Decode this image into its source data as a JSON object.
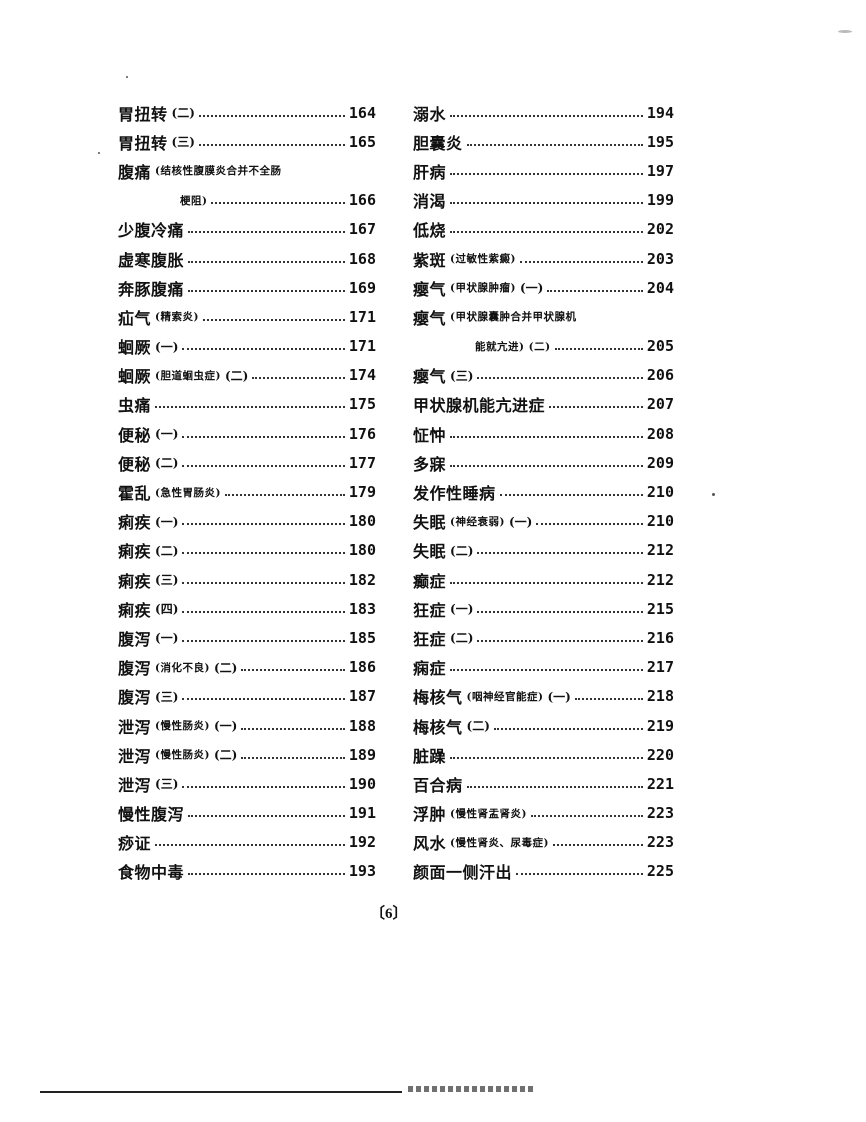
{
  "toc": {
    "left": [
      {
        "title": "胃扭转",
        "note": "",
        "suffix": "(二)",
        "page": "164"
      },
      {
        "title": "胃扭转",
        "note": "",
        "suffix": "(三)",
        "page": "165"
      },
      {
        "title": "腹痛",
        "note": "(结核性腹膜炎合并不全肠",
        "continuation": "梗阻)",
        "page": "166"
      },
      {
        "title": "少腹冷痛",
        "note": "",
        "suffix": "",
        "page": "167"
      },
      {
        "title": "虚寒腹胀",
        "note": "",
        "suffix": "",
        "page": "168"
      },
      {
        "title": "奔豚腹痛",
        "note": "",
        "suffix": "",
        "page": "169"
      },
      {
        "title": "疝气",
        "note": "(精索炎)",
        "suffix": "",
        "page": "171"
      },
      {
        "title": "蛔厥",
        "note": "",
        "suffix": "(一)",
        "page": "171"
      },
      {
        "title": "蛔厥",
        "note": "(胆道蛔虫症)",
        "suffix": "(二)",
        "page": "174"
      },
      {
        "title": "虫痛",
        "note": "",
        "suffix": "",
        "page": "175"
      },
      {
        "title": "便秘",
        "note": "",
        "suffix": "(一)",
        "page": "176"
      },
      {
        "title": "便秘",
        "note": "",
        "suffix": "(二)",
        "page": "177"
      },
      {
        "title": "霍乱",
        "note": "(急性胃肠炎)",
        "suffix": "",
        "page": "179"
      },
      {
        "title": "痢疾",
        "note": "",
        "suffix": "(一)",
        "page": "180"
      },
      {
        "title": "痢疾",
        "note": "",
        "suffix": "(二)",
        "page": "180"
      },
      {
        "title": "痢疾",
        "note": "",
        "suffix": "(三)",
        "page": "182"
      },
      {
        "title": "痢疾",
        "note": "",
        "suffix": "(四)",
        "page": "183"
      },
      {
        "title": "腹泻",
        "note": "",
        "suffix": "(一)",
        "page": "185"
      },
      {
        "title": "腹泻",
        "note": "(消化不良)",
        "suffix": "(二)",
        "page": "186"
      },
      {
        "title": "腹泻",
        "note": "",
        "suffix": "(三)",
        "page": "187"
      },
      {
        "title": "泄泻",
        "note": "(慢性肠炎)",
        "suffix": "(一)",
        "page": "188"
      },
      {
        "title": "泄泻",
        "note": "(慢性肠炎)",
        "suffix": "(二)",
        "page": "189"
      },
      {
        "title": "泄泻",
        "note": "",
        "suffix": "(三)",
        "page": "190"
      },
      {
        "title": "慢性腹泻",
        "note": "",
        "suffix": "",
        "page": "191"
      },
      {
        "title": "痧证",
        "note": "",
        "suffix": "",
        "page": "192"
      },
      {
        "title": "食物中毒",
        "note": "",
        "suffix": "",
        "page": "193"
      }
    ],
    "right": [
      {
        "title": "溺水",
        "note": "",
        "suffix": "",
        "page": "194"
      },
      {
        "title": "胆囊炎",
        "note": "",
        "suffix": "",
        "page": "195"
      },
      {
        "title": "肝病",
        "note": "",
        "suffix": "",
        "page": "197"
      },
      {
        "title": "消渴",
        "note": "",
        "suffix": "",
        "page": "199"
      },
      {
        "title": "低烧",
        "note": "",
        "suffix": "",
        "page": "202"
      },
      {
        "title": "紫斑",
        "note": "(过敏性紫癜)",
        "suffix": "",
        "page": "203"
      },
      {
        "title": "瘿气",
        "note": "(甲状腺肿瘤)",
        "suffix": "(一)",
        "page": "204"
      },
      {
        "title": "瘿气",
        "note": "(甲状腺囊肿合并甲状腺机",
        "continuation": "能就亢进) (二)",
        "page": "205"
      },
      {
        "title": "瘿气",
        "note": "",
        "suffix": "(三)",
        "page": "206"
      },
      {
        "title": "甲状腺机能亢进症",
        "note": "",
        "suffix": "",
        "page": "207"
      },
      {
        "title": "怔忡",
        "note": "",
        "suffix": "",
        "page": "208"
      },
      {
        "title": "多寐",
        "note": "",
        "suffix": "",
        "page": "209"
      },
      {
        "title": "发作性睡病",
        "note": "",
        "suffix": "",
        "page": "210"
      },
      {
        "title": "失眠",
        "note": "(神经衰弱)",
        "suffix": "(一)",
        "page": "210"
      },
      {
        "title": "失眠",
        "note": "",
        "suffix": "(二)",
        "page": "212"
      },
      {
        "title": "癫症",
        "note": "",
        "suffix": "",
        "page": "212"
      },
      {
        "title": "狂症",
        "note": "",
        "suffix": "(一)",
        "page": "215"
      },
      {
        "title": "狂症",
        "note": "",
        "suffix": "(二)",
        "page": "216"
      },
      {
        "title": "痫症",
        "note": "",
        "suffix": "",
        "page": "217"
      },
      {
        "title": "梅核气",
        "note": "(咽神经官能症)",
        "suffix": "(一)",
        "page": "218"
      },
      {
        "title": "梅核气",
        "note": "",
        "suffix": "(二)",
        "page": "219"
      },
      {
        "title": "脏躁",
        "note": "",
        "suffix": "",
        "page": "220"
      },
      {
        "title": "百合病",
        "note": "",
        "suffix": "",
        "page": "221"
      },
      {
        "title": "浮肿",
        "note": "(慢性肾盂肾炎)",
        "suffix": "",
        "page": "223"
      },
      {
        "title": "风水",
        "note": "(慢性肾炎、尿毒症)",
        "suffix": "",
        "page": "223"
      },
      {
        "title": "颜面一侧汗出",
        "note": "",
        "suffix": "",
        "page": "225"
      }
    ]
  },
  "footer": {
    "page_number": "〔6〕"
  }
}
